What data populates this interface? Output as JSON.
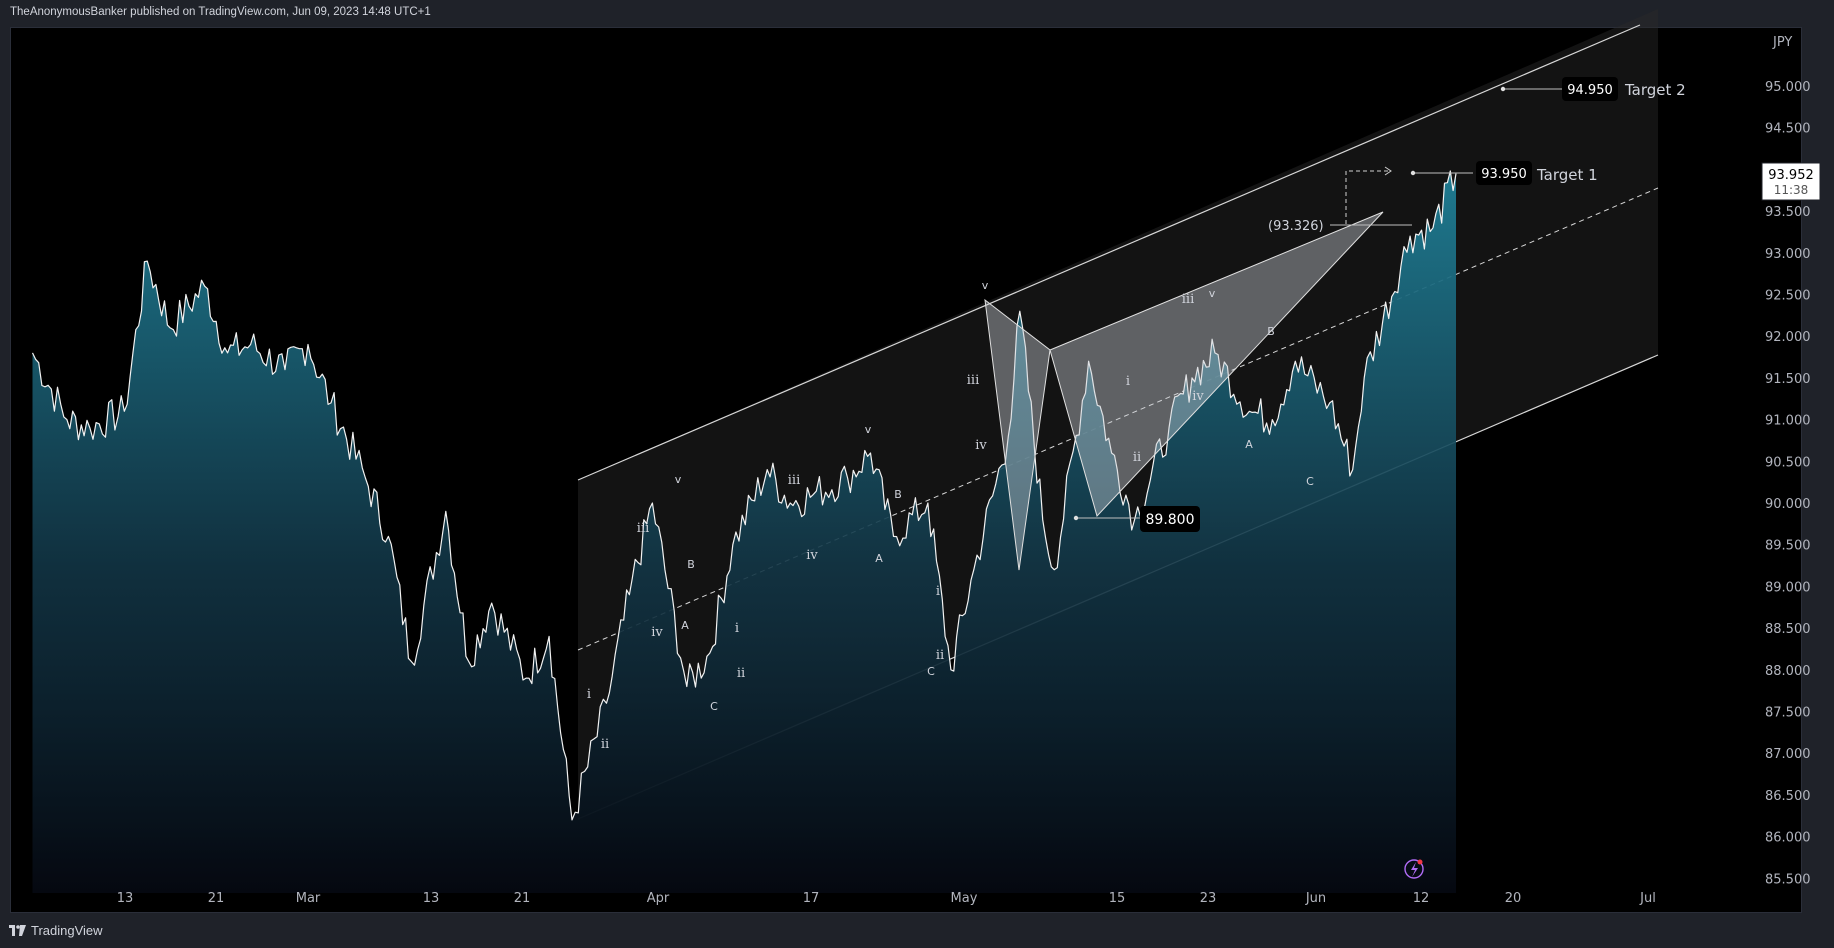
{
  "header": {
    "attribution": "TheAnonymousBanker published on TradingView.com, Jun 09, 2023 14:48 UTC+1"
  },
  "footer": {
    "brand": "TradingView"
  },
  "colors": {
    "background": "#000000",
    "chrome": "#1f2229",
    "line": "#ffffff",
    "area_top": "#1f7f96",
    "area_bottom": "#050810",
    "channel_fill": "#2a2a2a",
    "label_bg": "#000000"
  },
  "chart_data": {
    "type": "area",
    "currency": "JPY",
    "ylim": [
      85.5,
      95.0
    ],
    "y_ticks": [
      "95.000",
      "94.500",
      "94.000",
      "93.500",
      "93.000",
      "92.500",
      "92.000",
      "91.500",
      "91.000",
      "90.500",
      "90.000",
      "89.500",
      "89.000",
      "88.500",
      "88.000",
      "87.500",
      "87.000",
      "86.500",
      "86.000",
      "85.500"
    ],
    "x_ticks": [
      "13",
      "21",
      "Mar",
      "13",
      "21",
      "Apr",
      "17",
      "May",
      "15",
      "23",
      "Jun",
      "12",
      "20",
      "Jul"
    ],
    "series": [
      {
        "x": [
          "Feb 05",
          "Feb 08",
          "Feb 10",
          "Feb 13",
          "Feb 15",
          "Feb 17",
          "Feb 20",
          "Feb 22",
          "Feb 24",
          "Feb 27",
          "Mar 01",
          "Mar 03",
          "Mar 06",
          "Mar 08",
          "Mar 10",
          "Mar 13",
          "Mar 15",
          "Mar 17",
          "Mar 20",
          "Mar 22",
          "Mar 24",
          "Mar 27",
          "Mar 29",
          "Mar 31",
          "Apr 03",
          "Apr 05",
          "Apr 07",
          "Apr 10",
          "Apr 12",
          "Apr 14",
          "Apr 17",
          "Apr 19",
          "Apr 21",
          "Apr 24",
          "Apr 26",
          "Apr 28",
          "May 01",
          "May 02",
          "May 04",
          "May 05",
          "May 08",
          "May 10",
          "May 12",
          "May 15",
          "May 17",
          "May 19",
          "May 22",
          "May 24",
          "May 26",
          "May 29",
          "May 31",
          "Jun 01",
          "Jun 05",
          "Jun 07",
          "Jun 09"
        ],
        "values": [
          91.8,
          91.0,
          90.9,
          91.1,
          92.9,
          92.1,
          92.6,
          91.8,
          91.9,
          91.6,
          91.9,
          91.2,
          90.3,
          89.6,
          88.1,
          89.9,
          88.1,
          88.8,
          87.9,
          88.4,
          86.2,
          87.6,
          88.9,
          90.0,
          87.8,
          88.2,
          89.5,
          90.4,
          90.0,
          90.1,
          90.3,
          90.6,
          89.6,
          90.0,
          88.0,
          89.2,
          90.8,
          92.3,
          89.8,
          89.2,
          91.7,
          90.6,
          89.8,
          90.9,
          91.5,
          91.8,
          91.1,
          91.0,
          91.7,
          91.2,
          90.4,
          91.5,
          93.2,
          93.3,
          93.95
        ]
      }
    ],
    "annotations": {
      "target_1": {
        "price": "93.950",
        "label": "Target 1"
      },
      "target_2": {
        "price": "94.950",
        "label": "Target 2"
      },
      "low_marker": {
        "price": "89.800"
      },
      "bracket_level": {
        "text": "(93.326)"
      },
      "last_price": {
        "price": "93.952",
        "countdown": "11:38"
      }
    },
    "wave_labels": [
      "i",
      "ii",
      "iii",
      "iv",
      "v",
      "A",
      "B",
      "C",
      "i",
      "ii",
      "iii",
      "iv",
      "v",
      "A",
      "B",
      "C",
      "i",
      "ii",
      "iii",
      "iv",
      "v",
      "i",
      "ii",
      "iii",
      "iv",
      "v",
      "A",
      "B",
      "C"
    ]
  }
}
